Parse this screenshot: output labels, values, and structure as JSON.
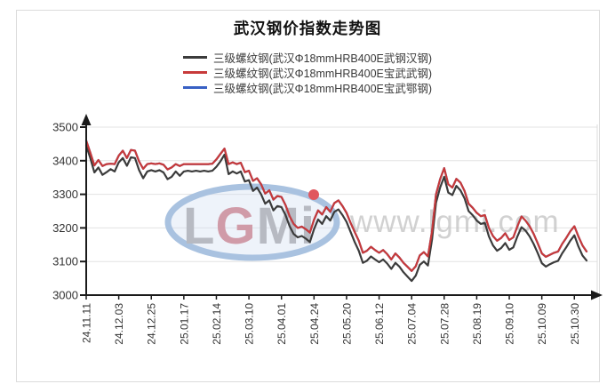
{
  "chart_data": {
    "type": "line",
    "title": "武汉钢价指数走势图",
    "legend_position": "top-center",
    "grid": true,
    "y_axis": {
      "min": 3000,
      "max": 3500,
      "tick_step": 100,
      "tick_labels": [
        "3000",
        "3100",
        "3200",
        "3300",
        "3400",
        "3500"
      ]
    },
    "x_axis": {
      "tick_labels": [
        "24.11.11",
        "24.12.03",
        "24.12.25",
        "25.01.17",
        "25.02.14",
        "25.03.10",
        "25.04.01",
        "25.04.24",
        "25.05.20",
        "25.06.12",
        "25.07.04",
        "25.07.28",
        "25.08.19",
        "25.09.10",
        "25.10.09",
        "25.10.30"
      ],
      "points_per_tick_interval": 8,
      "label_rotation_deg": -90
    },
    "watermark": {
      "logo_letters": [
        "L",
        "G",
        "M",
        "i"
      ],
      "logo_letter_colors": [
        "#b7bac2",
        "#d09ba8",
        "#b7bac2",
        "#b7bac2"
      ],
      "logo_dot_color": "#e0565e",
      "ellipse_color": "#a9c2e0",
      "url_text": "www.lgmi.com",
      "url_color": "#c9c9c9"
    },
    "series": [
      {
        "name": "三级螺纹钢(武汉Φ18mmHRB400E武钢汉钢)",
        "color": "#3b3b3b",
        "values": [
          3445,
          3408,
          3365,
          3380,
          3358,
          3366,
          3375,
          3368,
          3395,
          3408,
          3385,
          3410,
          3408,
          3372,
          3348,
          3368,
          3372,
          3368,
          3372,
          3365,
          3345,
          3352,
          3368,
          3355,
          3368,
          3370,
          3368,
          3370,
          3368,
          3370,
          3368,
          3370,
          3382,
          3398,
          3418,
          3360,
          3368,
          3362,
          3368,
          3338,
          3342,
          3310,
          3320,
          3300,
          3272,
          3282,
          3252,
          3265,
          3262,
          3238,
          3205,
          3182,
          3172,
          3176,
          3168,
          3158,
          3196,
          3225,
          3212,
          3235,
          3222,
          3248,
          3255,
          3238,
          3218,
          3188,
          3158,
          3132,
          3096,
          3102,
          3115,
          3106,
          3098,
          3106,
          3094,
          3078,
          3096,
          3085,
          3068,
          3055,
          3042,
          3058,
          3090,
          3100,
          3088,
          3165,
          3275,
          3320,
          3352,
          3305,
          3298,
          3325,
          3312,
          3288,
          3250,
          3238,
          3222,
          3212,
          3215,
          3175,
          3148,
          3132,
          3140,
          3155,
          3135,
          3142,
          3175,
          3202,
          3192,
          3175,
          3152,
          3125,
          3095,
          3085,
          3092,
          3098,
          3102,
          3124,
          3142,
          3162,
          3178,
          3145,
          3118,
          3103
        ]
      },
      {
        "name": "三级螺纹钢(武汉Φ18mmHRB400E宝武武钢)",
        "color": "#c73a3a",
        "values": [
          3460,
          3424,
          3386,
          3402,
          3384,
          3390,
          3391,
          3390,
          3415,
          3430,
          3408,
          3432,
          3430,
          3398,
          3376,
          3390,
          3392,
          3390,
          3392,
          3388,
          3374,
          3380,
          3390,
          3384,
          3390,
          3390,
          3390,
          3390,
          3390,
          3390,
          3390,
          3391,
          3404,
          3420,
          3436,
          3390,
          3395,
          3390,
          3394,
          3366,
          3370,
          3340,
          3348,
          3330,
          3302,
          3312,
          3284,
          3295,
          3292,
          3268,
          3235,
          3212,
          3200,
          3204,
          3196,
          3186,
          3224,
          3252,
          3240,
          3262,
          3248,
          3274,
          3282,
          3265,
          3245,
          3215,
          3188,
          3162,
          3126,
          3132,
          3144,
          3134,
          3126,
          3134,
          3122,
          3106,
          3124,
          3112,
          3096,
          3084,
          3072,
          3086,
          3118,
          3128,
          3115,
          3190,
          3300,
          3345,
          3378,
          3330,
          3320,
          3346,
          3335,
          3310,
          3272,
          3260,
          3245,
          3235,
          3238,
          3200,
          3176,
          3162,
          3170,
          3184,
          3164,
          3172,
          3205,
          3234,
          3222,
          3205,
          3182,
          3154,
          3124,
          3114,
          3120,
          3126,
          3130,
          3152,
          3170,
          3190,
          3205,
          3175,
          3148,
          3130
        ]
      },
      {
        "name": "三级螺纹钢(武汉Φ18mmHRB400E宝武鄂钢)",
        "color": "#3860c4",
        "hidden_behind_red_line": true,
        "values": [
          3460,
          3424,
          3386,
          3402,
          3384,
          3390,
          3391,
          3390,
          3415,
          3430,
          3408,
          3432,
          3430,
          3398,
          3376,
          3390,
          3392,
          3390,
          3392,
          3388,
          3374,
          3380,
          3390,
          3384,
          3390,
          3390,
          3390,
          3390,
          3390,
          3390,
          3390,
          3391,
          3404,
          3420,
          3436,
          3390,
          3395,
          3390,
          3394,
          3366,
          3370,
          3340,
          3348,
          3330,
          3302,
          3312,
          3284,
          3295,
          3292,
          3268,
          3235,
          3212,
          3200,
          3204,
          3196,
          3186,
          3224,
          3252,
          3240,
          3262,
          3248,
          3274,
          3282,
          3265,
          3245,
          3215,
          3188,
          3162,
          3126,
          3132,
          3144,
          3134,
          3126,
          3134,
          3122,
          3106,
          3124,
          3112,
          3096,
          3084,
          3072,
          3086,
          3118,
          3128,
          3115,
          3190,
          3300,
          3345,
          3378,
          3330,
          3320,
          3346,
          3335,
          3310,
          3272,
          3260,
          3245,
          3235,
          3238,
          3200,
          3176,
          3162,
          3170,
          3184,
          3164,
          3172,
          3205,
          3234,
          3222,
          3205,
          3182,
          3154,
          3124,
          3114,
          3120,
          3126,
          3130,
          3152,
          3170,
          3190,
          3205,
          3175,
          3148,
          3130
        ]
      }
    ]
  }
}
